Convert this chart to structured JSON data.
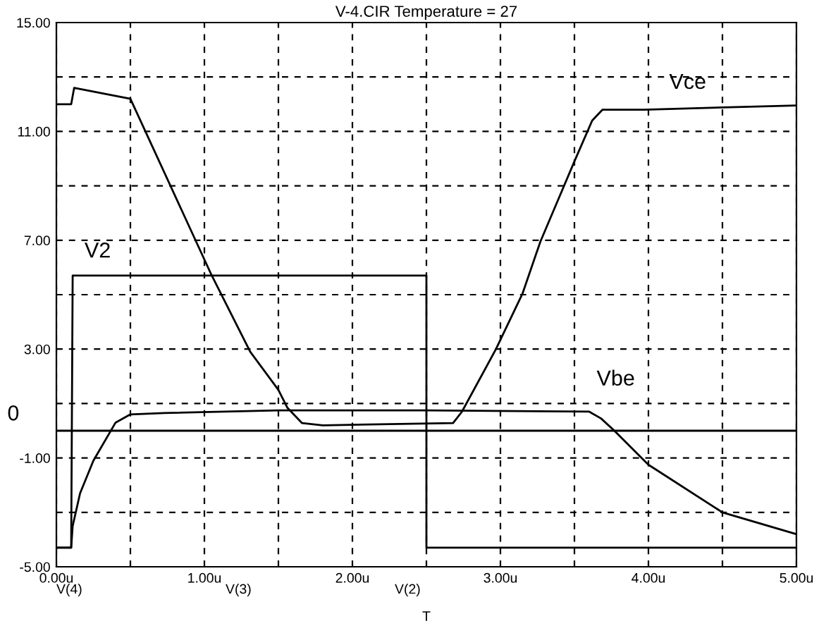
{
  "chart_data": {
    "type": "line",
    "title": "V-4.CIR Temperature = 27",
    "xlabel": "T",
    "annotations": [
      "V(4)",
      "V(3)",
      "V(2)"
    ],
    "xlim": [
      0,
      5
    ],
    "ylim": [
      -5,
      15
    ],
    "xticks": [
      {
        "value": 0,
        "label": "0.00u"
      },
      {
        "value": 0.5,
        "label": null
      },
      {
        "value": 1,
        "label": "1.00u"
      },
      {
        "value": 1.5,
        "label": null
      },
      {
        "value": 2,
        "label": "2.00u"
      },
      {
        "value": 2.5,
        "label": null
      },
      {
        "value": 3,
        "label": "3.00u"
      },
      {
        "value": 3.5,
        "label": null
      },
      {
        "value": 4,
        "label": "4.00u"
      },
      {
        "value": 4.5,
        "label": null
      },
      {
        "value": 5,
        "label": "5.00u"
      }
    ],
    "yticks": [
      {
        "value": -5,
        "label": "-5.00"
      },
      {
        "value": -3,
        "label": null
      },
      {
        "value": -1,
        "label": "-1.00"
      },
      {
        "value": 1,
        "label": null
      },
      {
        "value": 3,
        "label": "3.00"
      },
      {
        "value": 5,
        "label": null
      },
      {
        "value": 7,
        "label": "7.00"
      },
      {
        "value": 9,
        "label": null
      },
      {
        "value": 11,
        "label": "11.00"
      },
      {
        "value": 13,
        "label": null
      },
      {
        "value": 15,
        "label": "15.00"
      }
    ],
    "grid": true,
    "legend": false,
    "line_style": "solid",
    "marker": "none",
    "ref_lines": [
      {
        "axis": "y",
        "value": 0,
        "label": "0",
        "color": "#000000"
      }
    ],
    "series": [
      {
        "name": "V2",
        "color": "#000000",
        "x": [
          0,
          0.1,
          0.11,
          2.5,
          2.5,
          5
        ],
        "values": [
          -4.3,
          -4.3,
          5.7,
          5.7,
          -4.3,
          -4.3
        ]
      },
      {
        "name": "Vce",
        "color": "#000000",
        "x": [
          0,
          0.1,
          0.12,
          0.5,
          1.05,
          1.31,
          1.5,
          1.56,
          1.66,
          1.8,
          2.68,
          2.74,
          2.97,
          3.15,
          3.27,
          3.5,
          3.62,
          3.69,
          3.97,
          4.64,
          5
        ],
        "values": [
          12,
          12,
          12.6,
          12.2,
          5.7,
          2.9,
          1.5,
          0.85,
          0.28,
          0.2,
          0.28,
          0.7,
          3,
          5.05,
          6.95,
          9.9,
          11.4,
          11.8,
          11.8,
          11.9,
          11.95
        ]
      },
      {
        "name": "Vbe",
        "color": "#000000",
        "x": [
          0,
          0.1,
          0.11,
          0.16,
          0.25,
          0.4,
          0.5,
          0.73,
          1.5,
          2.5,
          3.6,
          3.68,
          3.77,
          4,
          4.5,
          5
        ],
        "values": [
          -4.3,
          -4.3,
          -3.5,
          -2.3,
          -1.1,
          0.3,
          0.6,
          0.65,
          0.75,
          0.75,
          0.7,
          0.45,
          0,
          -1.25,
          -3,
          -3.8
        ]
      }
    ]
  }
}
